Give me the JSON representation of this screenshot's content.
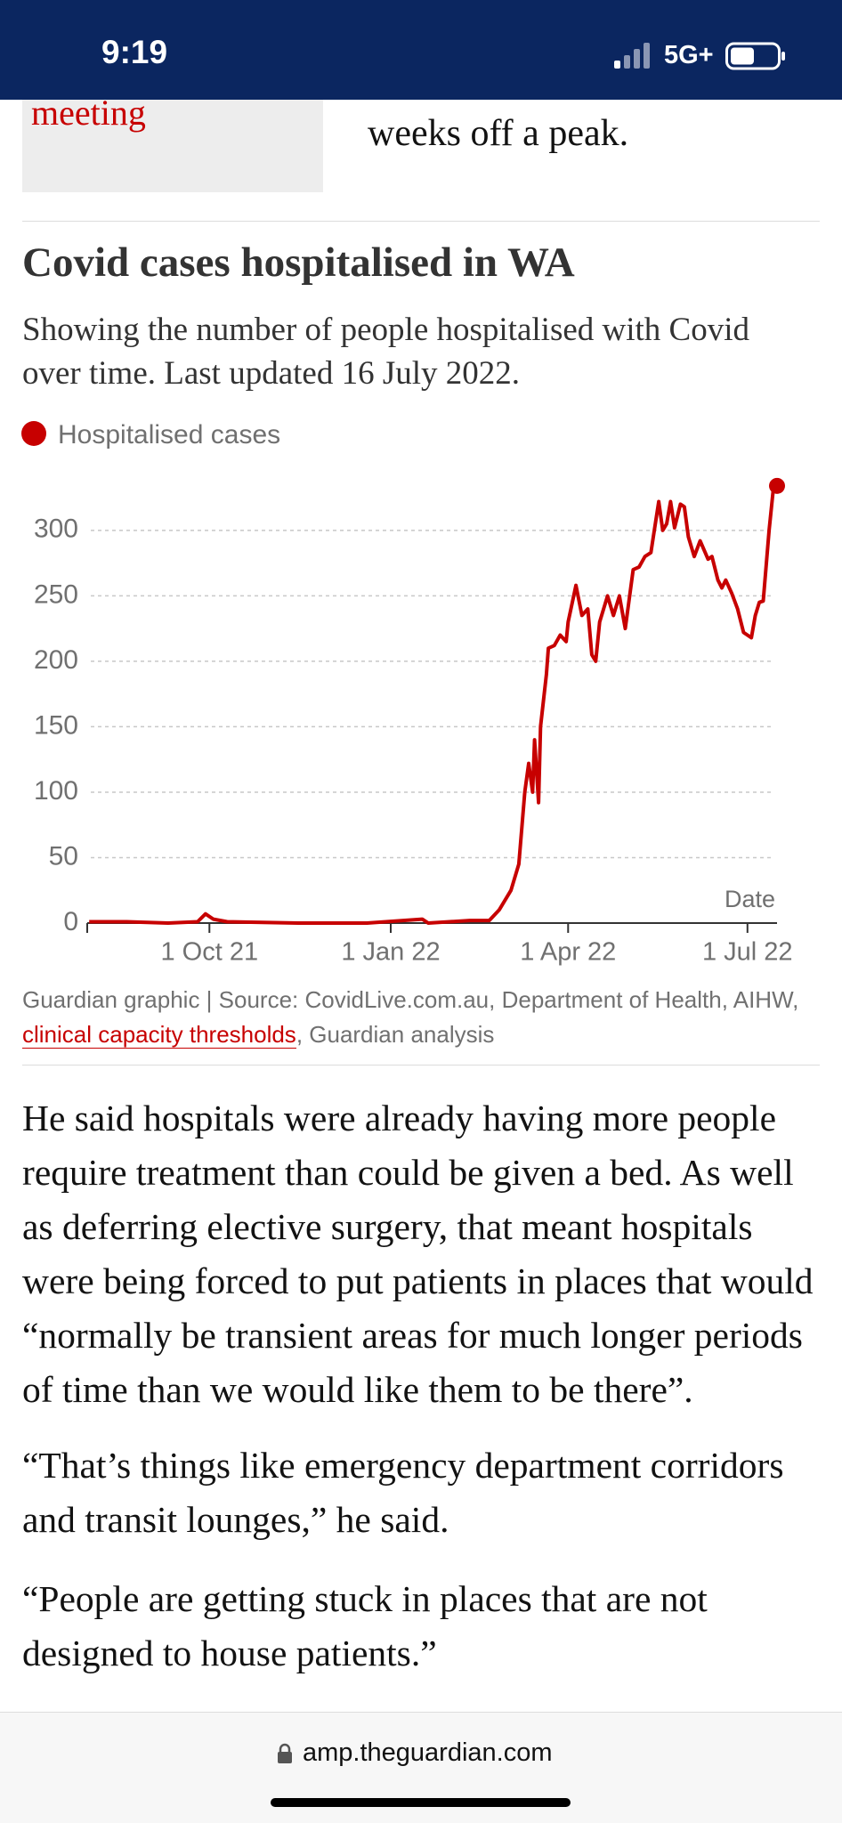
{
  "status": {
    "time": "9:19",
    "network": "5G+"
  },
  "previous_block": {
    "box_text": "national cabinet meeting",
    "right_text": "weeks off a peak."
  },
  "chart_data": {
    "type": "line",
    "title": "Covid cases hospitalised in WA",
    "subtitle": "Showing the number of people hospitalised with Covid over time. Last updated 16 July 2022.",
    "x_label": "Date",
    "x": [
      "2021-08-01",
      "2021-08-20",
      "2021-09-10",
      "2021-09-25",
      "2021-09-29",
      "2021-10-03",
      "2021-10-10",
      "2021-11-15",
      "2021-12-20",
      "2022-01-17",
      "2022-01-20",
      "2022-02-10",
      "2022-02-20",
      "2022-02-25",
      "2022-03-03",
      "2022-03-07",
      "2022-03-10",
      "2022-03-12",
      "2022-03-14",
      "2022-03-15",
      "2022-03-17",
      "2022-03-18",
      "2022-03-21",
      "2022-03-22",
      "2022-03-25",
      "2022-03-28",
      "2022-03-31",
      "2022-04-01",
      "2022-04-05",
      "2022-04-08",
      "2022-04-11",
      "2022-04-13",
      "2022-04-15",
      "2022-04-17",
      "2022-04-21",
      "2022-04-24",
      "2022-04-27",
      "2022-04-30",
      "2022-05-04",
      "2022-05-07",
      "2022-05-10",
      "2022-05-13",
      "2022-05-17",
      "2022-05-19",
      "2022-05-21",
      "2022-05-23",
      "2022-05-25",
      "2022-05-28",
      "2022-05-30",
      "2022-06-01",
      "2022-06-04",
      "2022-06-07",
      "2022-06-11",
      "2022-06-13",
      "2022-06-16",
      "2022-06-18",
      "2022-06-20",
      "2022-06-23",
      "2022-06-26",
      "2022-06-29",
      "2022-07-01",
      "2022-07-03",
      "2022-07-05",
      "2022-07-07",
      "2022-07-09",
      "2022-07-12",
      "2022-07-14",
      "2022-07-16"
    ],
    "series": [
      {
        "name": "Hospitalised cases",
        "color": "#c70000",
        "values": [
          1,
          1,
          0,
          1,
          7,
          3,
          1,
          0,
          0,
          3,
          0,
          2,
          2,
          10,
          25,
          45,
          100,
          122,
          100,
          140,
          92,
          150,
          190,
          210,
          212,
          220,
          215,
          230,
          258,
          235,
          240,
          205,
          200,
          230,
          250,
          235,
          250,
          225,
          270,
          272,
          280,
          283,
          322,
          300,
          305,
          322,
          302,
          320,
          318,
          295,
          280,
          292,
          278,
          280,
          262,
          256,
          262,
          252,
          240,
          222,
          220,
          218,
          235,
          245,
          246,
          300,
          330,
          334
        ]
      }
    ],
    "xlim": [
      "2021-07-31",
      "2022-07-16"
    ],
    "xticks": [
      {
        "value": "2021-10-01",
        "label": "1 Oct 21"
      },
      {
        "value": "2022-01-01",
        "label": "1 Jan 22"
      },
      {
        "value": "2022-04-01",
        "label": "1 Apr 22"
      },
      {
        "value": "2022-07-01",
        "label": "1 Jul 22"
      }
    ],
    "ylim": [
      0,
      340
    ],
    "yticks": [
      0,
      50,
      100,
      150,
      200,
      250,
      300
    ],
    "grid": true,
    "source": {
      "before": "Guardian graphic | Source: CovidLive.com.au, Department of Health, AIHW, ",
      "link": "clinical capacity thresholds",
      "after": ", Guardian analysis"
    }
  },
  "article": {
    "paragraphs": [
      "He said hospitals were already having more people require treatment than could be given a bed. As well as deferring elective surgery, that meant hospitals were being forced to put patients in places that would “normally be transient areas for much longer periods of time than we would like them to be there”.",
      "“That’s things like emergency department corridors and transit lounges,” he said.",
      "“People are getting stuck in places that are not designed to house patients.”"
    ]
  },
  "browser": {
    "url": "amp.theguardian.com"
  }
}
